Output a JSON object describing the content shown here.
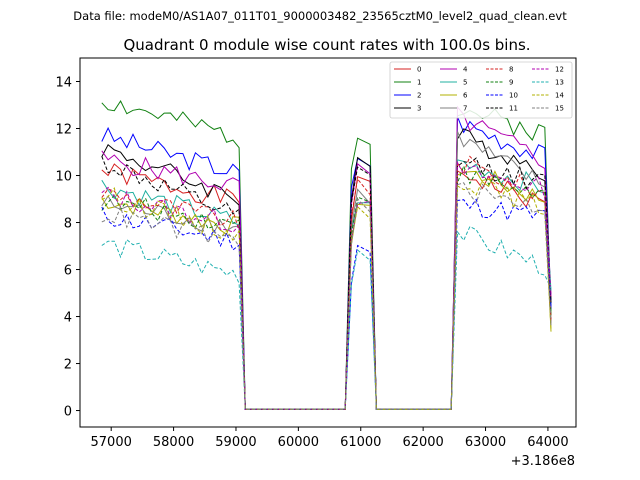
{
  "chart_data": {
    "type": "line",
    "suptitle": "Data file: modeM0/AS1A07_011T01_9000003482_23565cztM0_level2_quad_clean.evt",
    "title": "Quadrant 0 module wise count rates with 100.0s bins.",
    "xlabel": "",
    "ylabel": "",
    "x_offset_label": "+3.186e8",
    "xlim": [
      56500,
      64450
    ],
    "ylim": [
      -0.7,
      15.0
    ],
    "xticks": [
      57000,
      58000,
      59000,
      60000,
      61000,
      62000,
      63000,
      64000
    ],
    "xtick_labels": [
      "57000",
      "58000",
      "59000",
      "60000",
      "61000",
      "62000",
      "63000",
      "64000"
    ],
    "yticks": [
      0,
      2,
      4,
      6,
      8,
      10,
      12,
      14
    ],
    "ytick_labels": [
      "0",
      "2",
      "4",
      "6",
      "8",
      "10",
      "12",
      "14"
    ],
    "legend": {
      "location": "top-right",
      "columns": 4
    },
    "segments": [
      {
        "start": 56850,
        "end": 59050,
        "gap_after_to": 59150
      },
      {
        "start": 60850,
        "end": 61150,
        "gap_before_from": 60750,
        "gap_after_to": 61250
      },
      {
        "start": 62550,
        "end": 64050,
        "gap_before_from": 62450
      }
    ],
    "series": [
      {
        "name": "0",
        "color": "#d62020",
        "dash": "solid",
        "seed": 1,
        "levels": [
          10.2,
          9.8,
          10.2
        ],
        "slopes": [
          -1.3,
          0,
          -1.6
        ]
      },
      {
        "name": "1",
        "color": "#108010",
        "dash": "solid",
        "seed": 2,
        "levels": [
          13.2,
          11.8,
          12.9
        ],
        "slopes": [
          -1.6,
          0,
          -1.2
        ]
      },
      {
        "name": "2",
        "color": "#0000ff",
        "dash": "solid",
        "seed": 3,
        "levels": [
          11.7,
          10.8,
          12.3
        ],
        "slopes": [
          -1.6,
          0,
          -1.6
        ]
      },
      {
        "name": "3",
        "color": "#000000",
        "dash": "solid",
        "seed": 4,
        "levels": [
          11.2,
          10.7,
          11.7
        ],
        "slopes": [
          -2.2,
          0,
          -1.6
        ]
      },
      {
        "name": "4",
        "color": "#b000b0",
        "dash": "solid",
        "seed": 5,
        "levels": [
          10.7,
          10.3,
          12.5
        ],
        "slopes": [
          -1.2,
          0,
          -2.0
        ]
      },
      {
        "name": "5",
        "color": "#20b0a0",
        "dash": "solid",
        "seed": 6,
        "levels": [
          9.6,
          9.0,
          10.6
        ],
        "slopes": [
          -1.6,
          0,
          -1.2
        ]
      },
      {
        "name": "6",
        "color": "#b0b000",
        "dash": "solid",
        "seed": 7,
        "levels": [
          9.0,
          8.8,
          10.3
        ],
        "slopes": [
          -1.2,
          0,
          -1.4
        ]
      },
      {
        "name": "7",
        "color": "#808080",
        "dash": "solid",
        "seed": 8,
        "levels": [
          8.8,
          9.3,
          11.6
        ],
        "slopes": [
          -1.0,
          0,
          -2.2
        ]
      },
      {
        "name": "8",
        "color": "#d62020",
        "dash": "dashed",
        "seed": 9,
        "levels": [
          9.3,
          9.6,
          10.6
        ],
        "slopes": [
          -1.3,
          0,
          -1.5
        ]
      },
      {
        "name": "9",
        "color": "#108010",
        "dash": "dashed",
        "seed": 10,
        "levels": [
          8.9,
          9.2,
          10.1
        ],
        "slopes": [
          -1.0,
          0,
          -1.0
        ]
      },
      {
        "name": "10",
        "color": "#0000ff",
        "dash": "dashed",
        "seed": 11,
        "levels": [
          8.3,
          7.0,
          8.8
        ],
        "slopes": [
          -1.1,
          0,
          -0.6
        ]
      },
      {
        "name": "11",
        "color": "#000000",
        "dash": "dashed",
        "seed": 12,
        "levels": [
          10.6,
          10.2,
          10.6
        ],
        "slopes": [
          -2.4,
          0,
          -1.0
        ]
      },
      {
        "name": "12",
        "color": "#b000b0",
        "dash": "dashed",
        "seed": 13,
        "levels": [
          9.2,
          9.0,
          10.2
        ],
        "slopes": [
          -1.3,
          0,
          -0.8
        ]
      },
      {
        "name": "13",
        "color": "#20b0b0",
        "dash": "dashed",
        "seed": 14,
        "levels": [
          7.1,
          6.9,
          7.6
        ],
        "slopes": [
          -1.3,
          0,
          -1.6
        ]
      },
      {
        "name": "14",
        "color": "#b0b000",
        "dash": "dashed",
        "seed": 15,
        "levels": [
          9.2,
          8.6,
          9.9
        ],
        "slopes": [
          -1.7,
          0,
          -1.4
        ]
      },
      {
        "name": "15",
        "color": "#808080",
        "dash": "dashed",
        "seed": 16,
        "levels": [
          8.4,
          8.8,
          9.4
        ],
        "slopes": [
          -1.2,
          0,
          -0.8
        ]
      }
    ]
  }
}
